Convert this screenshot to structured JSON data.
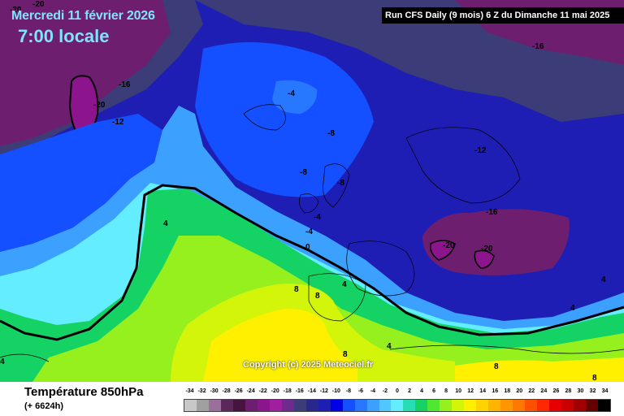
{
  "header": {
    "date": "Mercredi 11 février 2026",
    "time": "7:00 locale",
    "run": "Run CFS Daily (9 mois) 6 Z du Dimanche 11 mai 2025"
  },
  "map": {
    "copyright": "Copyright (c) 2025 Meteociel.fr",
    "contour_labels": [
      "-20",
      "-20",
      "-16",
      "-20",
      "-12",
      "-16",
      "-4",
      "-8",
      "-8",
      "-8",
      "-12",
      "-4",
      "-4",
      "-16",
      "-20",
      "-20",
      "0",
      "4",
      "4",
      "8",
      "8",
      "4",
      "4",
      "8",
      "4",
      "4",
      "8",
      "8"
    ]
  },
  "footer": {
    "title": "Température 850hPa",
    "subtitle": "(+ 6624h)"
  },
  "legend": {
    "labels": [
      "-34",
      "-32",
      "-30",
      "-28",
      "-26",
      "-24",
      "-22",
      "-20",
      "-18",
      "-16",
      "-14",
      "-12",
      "-10",
      "-8",
      "-6",
      "-4",
      "-2",
      "0",
      "2",
      "4",
      "6",
      "8",
      "10",
      "12",
      "14",
      "16",
      "18",
      "20",
      "22",
      "24",
      "26",
      "28",
      "30",
      "32",
      "34"
    ],
    "colors": [
      "#c8c8c8",
      "#a0a0a0",
      "#9b6e9b",
      "#5a285a",
      "#46143c",
      "#6e1e6e",
      "#8c148c",
      "#a01ea0",
      "#6e2a8c",
      "#3c3c78",
      "#28288c",
      "#1e1eb4",
      "#0000e6",
      "#1450ff",
      "#2878ff",
      "#3ca0ff",
      "#50c8ff",
      "#64ecff",
      "#28dcb4",
      "#14d264",
      "#50e632",
      "#96f01e",
      "#d2f50a",
      "#fff000",
      "#ffd200",
      "#ffb400",
      "#ff9600",
      "#ff7800",
      "#ff5000",
      "#ff2800",
      "#e60000",
      "#c80000",
      "#a00000",
      "#640000",
      "#000000"
    ]
  }
}
